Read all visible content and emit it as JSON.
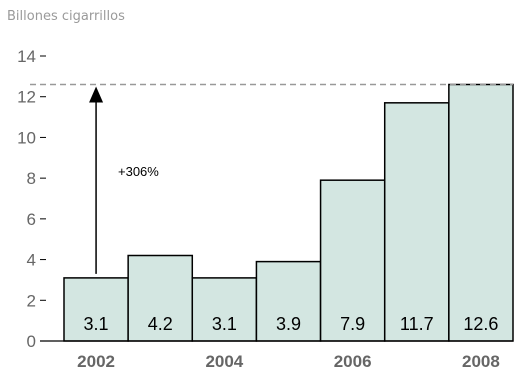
{
  "chart_data": {
    "type": "bar",
    "unit_label": "Billones cigarrillos",
    "years": [
      "2002",
      "2003",
      "2004",
      "2005",
      "2006",
      "2007",
      "2008"
    ],
    "values": [
      3.1,
      4.2,
      3.1,
      3.9,
      7.9,
      11.7,
      12.6
    ],
    "value_labels": [
      "3.1",
      "4.2",
      "3.1",
      "3.9",
      "7.9",
      "11.7",
      "12.6"
    ],
    "x_tick_labels": [
      "2002",
      "2004",
      "2006",
      "2008"
    ],
    "y_ticks": [
      0,
      2,
      4,
      6,
      8,
      10,
      12,
      14
    ],
    "ylim": [
      0,
      14
    ],
    "reference_line": 12.6,
    "annotation": {
      "text": "+306%",
      "from_value": 3.1,
      "to_value": 12.6
    },
    "bar_fill": "#d3e6e1",
    "bar_stroke": "#000000",
    "reference_line_color": "#999999",
    "axis_text_color": "#666666",
    "grid": false
  }
}
